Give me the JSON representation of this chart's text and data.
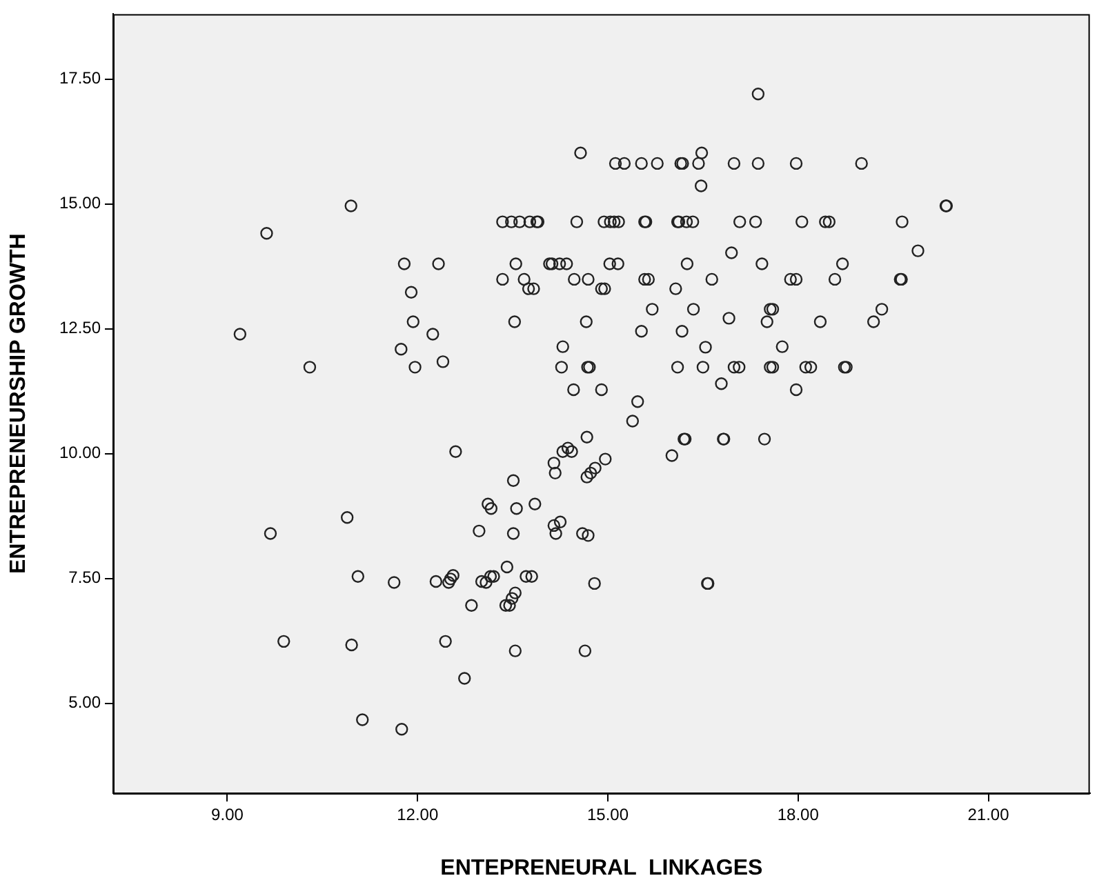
{
  "chart_data": {
    "type": "scatter",
    "xlabel": "ENTEPRENEURAL  LINKAGES",
    "ylabel": "ENTREPRENEURSHIP GROWTH",
    "xlim": [
      7.2,
      22.6
    ],
    "ylim": [
      3.2,
      18.8
    ],
    "xticks": [
      {
        "value": 9,
        "label": "9.00"
      },
      {
        "value": 12,
        "label": "12.00"
      },
      {
        "value": 15,
        "label": "15.00"
      },
      {
        "value": 18,
        "label": "18.00"
      },
      {
        "value": 21,
        "label": "21.00"
      }
    ],
    "yticks": [
      {
        "value": 5,
        "label": "5.00"
      },
      {
        "value": 7.5,
        "label": "7.50"
      },
      {
        "value": 10,
        "label": "10.00"
      },
      {
        "value": 12.5,
        "label": "12.50"
      },
      {
        "value": 15,
        "label": "15.00"
      },
      {
        "value": 17.5,
        "label": "17.50"
      }
    ],
    "grid": false,
    "legend": false,
    "marker": "circle",
    "series": [
      {
        "color": "#222222",
        "x": [
          9.2,
          9.62,
          9.68,
          9.89,
          10.3,
          10.95,
          10.89,
          11.06,
          10.96,
          11.13,
          11.63,
          11.75,
          11.79,
          11.9,
          11.93,
          11.74,
          11.96,
          12.24,
          12.33,
          12.4,
          12.6,
          12.29,
          12.49,
          12.52,
          12.56,
          12.44,
          12.74,
          12.85,
          12.97,
          13.11,
          13.16,
          13.01,
          13.08,
          13.15,
          13.2,
          13.41,
          13.39,
          13.45,
          13.49,
          13.54,
          13.51,
          13.56,
          13.51,
          13.85,
          13.71,
          13.8,
          13.54,
          14.64,
          14.15,
          14.18,
          14.25,
          14.6,
          14.69,
          14.79,
          14.15,
          14.17,
          14.29,
          14.37,
          14.43,
          14.67,
          14.67,
          14.73,
          14.8,
          14.96,
          13.53,
          13.34,
          13.55,
          13.68,
          13.75,
          13.83,
          13.34,
          13.48,
          13.61,
          13.77,
          13.88,
          13.9,
          14.51,
          14.94,
          15.04,
          15.1,
          15.17,
          15.58,
          15.6,
          16.1,
          16.12,
          16.24,
          16.34,
          17.08,
          17.33,
          18.06,
          18.43,
          18.49,
          19.64,
          15.12,
          15.26,
          15.53,
          15.78,
          16.15,
          16.18,
          16.43,
          16.99,
          17.37,
          17.97,
          19.0,
          14.57,
          16.48,
          16.47,
          17.37,
          20.33,
          20.34,
          14.08,
          14.12,
          14.24,
          14.35,
          15.03,
          15.16,
          16.25,
          17.43,
          18.7,
          14.47,
          14.69,
          15.58,
          15.64,
          16.64,
          17.88,
          17.97,
          18.58,
          19.61,
          19.63,
          14.9,
          14.95,
          16.07,
          19.89,
          16.95,
          15.7,
          16.35,
          17.56,
          17.6,
          19.32,
          14.66,
          16.91,
          17.51,
          18.35,
          19.19,
          14.29,
          15.53,
          16.17,
          16.54,
          17.75,
          14.27,
          14.68,
          14.71,
          16.1,
          16.5,
          16.99,
          17.07,
          17.56,
          17.6,
          18.12,
          18.2,
          18.73,
          18.76,
          14.46,
          14.9,
          17.97,
          16.79,
          15.47,
          15.39,
          16.01,
          16.2,
          16.22,
          16.82,
          16.83,
          17.47,
          16.57,
          16.58
        ],
        "values": [
          12.39,
          14.41,
          8.4,
          6.24,
          11.73,
          14.96,
          8.72,
          7.54,
          6.17,
          4.67,
          7.42,
          4.48,
          13.8,
          13.23,
          12.64,
          12.09,
          11.73,
          12.39,
          13.8,
          11.84,
          10.04,
          7.44,
          7.42,
          7.49,
          7.56,
          6.24,
          5.5,
          6.96,
          8.45,
          8.99,
          8.9,
          7.44,
          7.42,
          7.54,
          7.54,
          7.73,
          6.96,
          6.96,
          7.1,
          7.21,
          9.46,
          8.9,
          8.4,
          8.99,
          7.54,
          7.54,
          6.05,
          6.05,
          8.56,
          8.4,
          8.63,
          8.4,
          8.36,
          7.4,
          9.81,
          9.61,
          10.04,
          10.11,
          10.04,
          10.33,
          9.53,
          9.61,
          9.71,
          9.89,
          12.64,
          13.49,
          13.8,
          13.49,
          13.3,
          13.3,
          14.64,
          14.64,
          14.64,
          14.64,
          14.64,
          14.64,
          14.64,
          14.64,
          14.64,
          14.64,
          14.64,
          14.64,
          14.64,
          14.64,
          14.64,
          14.64,
          14.64,
          14.64,
          14.64,
          14.64,
          14.64,
          14.64,
          14.64,
          15.81,
          15.81,
          15.81,
          15.81,
          15.81,
          15.81,
          15.81,
          15.81,
          15.81,
          15.81,
          15.81,
          16.02,
          16.02,
          15.36,
          17.2,
          14.96,
          14.96,
          13.8,
          13.8,
          13.8,
          13.8,
          13.8,
          13.8,
          13.8,
          13.8,
          13.8,
          13.49,
          13.49,
          13.49,
          13.49,
          13.49,
          13.49,
          13.49,
          13.49,
          13.49,
          13.49,
          13.3,
          13.3,
          13.3,
          14.06,
          14.02,
          12.89,
          12.89,
          12.89,
          12.89,
          12.89,
          12.64,
          12.71,
          12.64,
          12.64,
          12.64,
          12.14,
          12.45,
          12.45,
          12.13,
          12.14,
          11.73,
          11.73,
          11.73,
          11.73,
          11.73,
          11.73,
          11.73,
          11.73,
          11.73,
          11.73,
          11.73,
          11.73,
          11.73,
          11.28,
          11.28,
          11.28,
          11.4,
          11.04,
          10.65,
          9.96,
          10.29,
          10.29,
          10.29,
          10.29,
          10.29,
          7.4,
          7.4
        ]
      }
    ]
  }
}
